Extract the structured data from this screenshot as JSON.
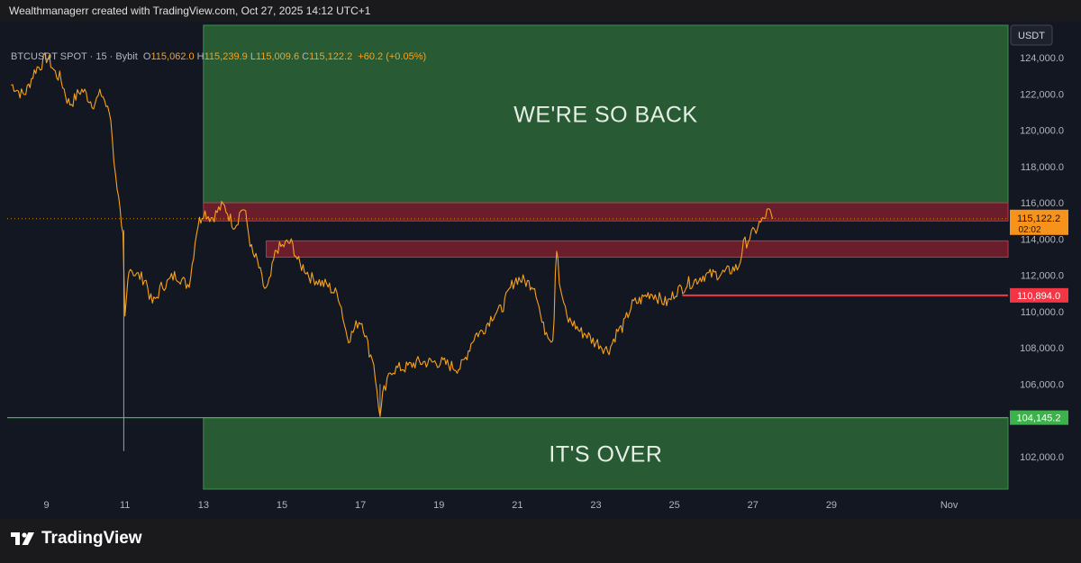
{
  "header": {
    "credit": "Wealthmanagerr created with TradingView.com, Oct 27, 2025 14:12 UTC+1"
  },
  "legend": {
    "symbol": "BTCUSDT SPOT · 15 · Bybit",
    "open_label": "O",
    "open": "115,062.0",
    "high_label": "H",
    "high": "115,239.9",
    "low_label": "L",
    "low": "115,009.6",
    "close_label": "C",
    "close": "115,122.2",
    "change": "+60.2 (+0.05%)"
  },
  "footer": {
    "brand": "TradingView",
    "logo": "tradingview-logo-icon"
  },
  "colors": {
    "background": "#131722",
    "price_line": "#f7a21b",
    "zone_green": "#2e6b3a",
    "zone_red": "#7a1f2c",
    "level_red": "#f23645",
    "level_green": "#3bb34a"
  },
  "chart_data": {
    "type": "line",
    "currency": "USDT",
    "ylim": [
      100000,
      126000
    ],
    "y_ticks": [
      {
        "v": 124000,
        "label": "124,000.0"
      },
      {
        "v": 122000,
        "label": "122,000.0"
      },
      {
        "v": 120000,
        "label": "120,000.0"
      },
      {
        "v": 118000,
        "label": "118,000.0"
      },
      {
        "v": 116000,
        "label": "116,000.0"
      },
      {
        "v": 114000,
        "label": "114,000.0"
      },
      {
        "v": 112000,
        "label": "112,000.0"
      },
      {
        "v": 110000,
        "label": "110,000.0"
      },
      {
        "v": 108000,
        "label": "108,000.0"
      },
      {
        "v": 106000,
        "label": "106,000.0"
      },
      {
        "v": 102000,
        "label": "102,000.0"
      }
    ],
    "x_ticks": [
      {
        "d": 9,
        "label": "9"
      },
      {
        "d": 11,
        "label": "11"
      },
      {
        "d": 13,
        "label": "13"
      },
      {
        "d": 15,
        "label": "15"
      },
      {
        "d": 17,
        "label": "17"
      },
      {
        "d": 19,
        "label": "19"
      },
      {
        "d": 21,
        "label": "21"
      },
      {
        "d": 23,
        "label": "23"
      },
      {
        "d": 25,
        "label": "25"
      },
      {
        "d": 27,
        "label": "27"
      },
      {
        "d": 29,
        "label": "29"
      },
      {
        "d": 32,
        "label": "Nov"
      }
    ],
    "series": [
      {
        "x": [
          8.1,
          8.4,
          8.8,
          9.0,
          9.3,
          9.6,
          9.9,
          10.2,
          10.4,
          10.6,
          10.8,
          10.95,
          11.0,
          11.05,
          11.1,
          11.3,
          11.5,
          11.7,
          12.0,
          12.3,
          12.6,
          12.9,
          13.0,
          13.2,
          13.5,
          13.8,
          14.0,
          14.3,
          14.6,
          14.9,
          15.2,
          15.5,
          15.8,
          16.1,
          16.4,
          16.7,
          17.0,
          17.3,
          17.5,
          17.6,
          17.8,
          18.1,
          18.5,
          19.0,
          19.5,
          20.0,
          20.5,
          21.0,
          21.4,
          21.7,
          21.9,
          22.0,
          22.1,
          22.3,
          22.7,
          23.0,
          23.3,
          23.6,
          24.0,
          24.4,
          24.8,
          25.1,
          25.4,
          25.8,
          26.2,
          26.6,
          26.8,
          27.0,
          27.2,
          27.4,
          27.5
        ],
        "y": [
          122500,
          122000,
          123500,
          124000,
          123000,
          121500,
          122200,
          121500,
          122000,
          121000,
          117000,
          114000,
          109500,
          111000,
          112500,
          112000,
          111800,
          110500,
          111500,
          112000,
          111500,
          115000,
          115500,
          115200,
          115800,
          114800,
          115700,
          113000,
          111200,
          113500,
          113800,
          112500,
          111800,
          111500,
          111000,
          108600,
          109500,
          107500,
          104400,
          105600,
          106800,
          106900,
          107200,
          107200,
          106900,
          108800,
          110000,
          111800,
          111500,
          109000,
          108500,
          113600,
          111000,
          109500,
          108800,
          108300,
          107900,
          109000,
          110500,
          111000,
          110500,
          111200,
          111600,
          112000,
          112100,
          112400,
          113800,
          114300,
          114900,
          115500,
          115122
        ]
      }
    ],
    "zones": [
      {
        "name": "green-upper",
        "x0": 13.0,
        "x1": 36.0,
        "y0": 116000,
        "y1": 125800,
        "label": "WE'RE SO BACK"
      },
      {
        "name": "green-lower",
        "x0": 13.0,
        "x1": 36.0,
        "y0": 100200,
        "y1": 104145,
        "label": "IT'S OVER"
      },
      {
        "name": "red-upper",
        "x0": 13.0,
        "x1": 36.0,
        "y0": 115000,
        "y1": 116000
      },
      {
        "name": "red-lower",
        "x0": 14.6,
        "x1": 36.0,
        "y0": 113000,
        "y1": 113900
      }
    ],
    "levels": [
      {
        "name": "level-110894",
        "x0": 25.2,
        "v": 110894,
        "label": "110,894.0",
        "color": "#f23645"
      },
      {
        "name": "level-104145",
        "x0": 8.0,
        "v": 104145,
        "label": "104,145.2",
        "color": "#3bb34a"
      }
    ],
    "wicks": [
      {
        "x": 10.97,
        "lo": 102300,
        "hi": 114500
      },
      {
        "x": 17.5,
        "lo": 104300,
        "hi": 106000
      }
    ],
    "last_price": {
      "v": 115122.2,
      "label": "115,122.2",
      "timer": "02:02"
    }
  }
}
